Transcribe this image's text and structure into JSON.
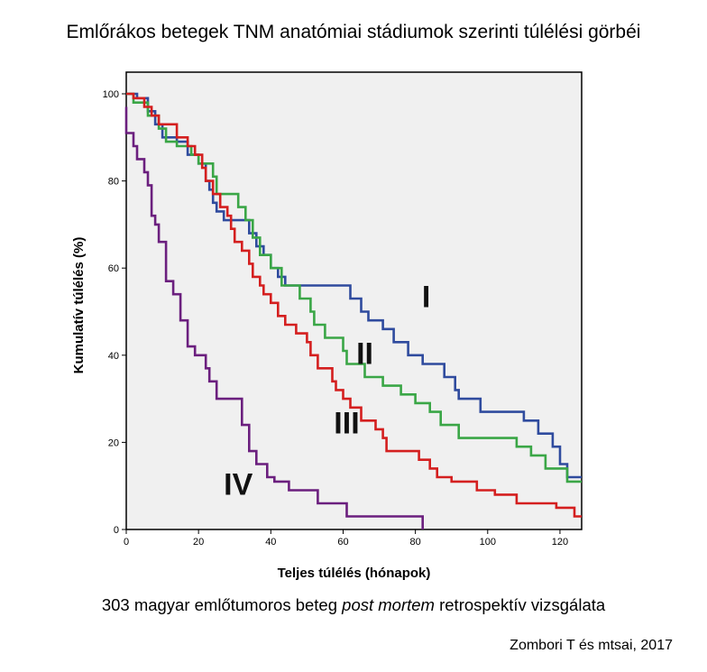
{
  "title": "Emlőrákos betegek TNM anatómiai stádiumok szerinti túlélési görbéi",
  "subtitle": {
    "before": "303 magyar emlőtumoros beteg ",
    "emphasis": "post mortem",
    "after": " retrospektív vizsgálata"
  },
  "credit": "Zombori T és mtsai, 2017",
  "chart_data": {
    "type": "line",
    "style": "step",
    "xlabel": "Teljes túlélés (hónapok)",
    "ylabel": "Kumulatív túlélés (%)",
    "xlim": [
      0,
      126
    ],
    "ylim": [
      0,
      100
    ],
    "xticks": [
      0,
      20,
      40,
      60,
      80,
      100,
      120
    ],
    "yticks": [
      0,
      20,
      40,
      60,
      80,
      100
    ],
    "background": "#f0f0f0",
    "series": [
      {
        "name": "I",
        "color": "#2f4b9e",
        "points": [
          [
            0,
            100
          ],
          [
            3,
            100
          ],
          [
            3,
            99
          ],
          [
            6,
            99
          ],
          [
            6,
            96
          ],
          [
            8,
            96
          ],
          [
            8,
            93
          ],
          [
            10,
            93
          ],
          [
            10,
            90
          ],
          [
            14,
            90
          ],
          [
            14,
            89
          ],
          [
            17,
            89
          ],
          [
            17,
            86
          ],
          [
            20,
            86
          ],
          [
            20,
            84
          ],
          [
            22,
            84
          ],
          [
            22,
            80
          ],
          [
            23,
            80
          ],
          [
            23,
            78
          ],
          [
            24,
            78
          ],
          [
            24,
            75
          ],
          [
            25,
            75
          ],
          [
            25,
            73
          ],
          [
            27,
            73
          ],
          [
            27,
            71
          ],
          [
            34,
            71
          ],
          [
            34,
            68
          ],
          [
            36,
            68
          ],
          [
            36,
            65
          ],
          [
            38,
            65
          ],
          [
            38,
            63
          ],
          [
            40,
            63
          ],
          [
            40,
            60
          ],
          [
            42,
            60
          ],
          [
            42,
            58
          ],
          [
            44,
            58
          ],
          [
            44,
            56
          ],
          [
            62,
            56
          ],
          [
            62,
            53
          ],
          [
            65,
            53
          ],
          [
            65,
            50
          ],
          [
            67,
            50
          ],
          [
            67,
            48
          ],
          [
            71,
            48
          ],
          [
            71,
            46
          ],
          [
            74,
            46
          ],
          [
            74,
            43
          ],
          [
            78,
            43
          ],
          [
            78,
            40
          ],
          [
            82,
            40
          ],
          [
            82,
            38
          ],
          [
            88,
            38
          ],
          [
            88,
            35
          ],
          [
            91,
            35
          ],
          [
            91,
            32
          ],
          [
            92,
            32
          ],
          [
            92,
            30
          ],
          [
            98,
            30
          ],
          [
            98,
            27
          ],
          [
            110,
            27
          ],
          [
            110,
            25
          ],
          [
            114,
            25
          ],
          [
            114,
            22
          ],
          [
            118,
            22
          ],
          [
            118,
            19
          ],
          [
            120,
            19
          ],
          [
            120,
            15
          ],
          [
            122,
            15
          ],
          [
            122,
            12
          ],
          [
            126,
            12
          ]
        ]
      },
      {
        "name": "II",
        "color": "#3aa646",
        "points": [
          [
            0,
            100
          ],
          [
            2,
            100
          ],
          [
            2,
            98
          ],
          [
            6,
            98
          ],
          [
            6,
            95
          ],
          [
            9,
            95
          ],
          [
            9,
            92
          ],
          [
            11,
            92
          ],
          [
            11,
            89
          ],
          [
            14,
            89
          ],
          [
            14,
            88
          ],
          [
            18,
            88
          ],
          [
            18,
            86
          ],
          [
            20,
            86
          ],
          [
            20,
            84
          ],
          [
            24,
            84
          ],
          [
            24,
            81
          ],
          [
            25,
            81
          ],
          [
            25,
            77
          ],
          [
            31,
            77
          ],
          [
            31,
            74
          ],
          [
            33,
            74
          ],
          [
            33,
            71
          ],
          [
            35,
            71
          ],
          [
            35,
            67
          ],
          [
            37,
            67
          ],
          [
            37,
            63
          ],
          [
            40,
            63
          ],
          [
            40,
            60
          ],
          [
            43,
            60
          ],
          [
            43,
            56
          ],
          [
            48,
            56
          ],
          [
            48,
            53
          ],
          [
            51,
            53
          ],
          [
            51,
            50
          ],
          [
            52,
            50
          ],
          [
            52,
            47
          ],
          [
            55,
            47
          ],
          [
            55,
            44
          ],
          [
            60,
            44
          ],
          [
            60,
            41
          ],
          [
            61,
            41
          ],
          [
            61,
            38
          ],
          [
            66,
            38
          ],
          [
            66,
            35
          ],
          [
            71,
            35
          ],
          [
            71,
            33
          ],
          [
            76,
            33
          ],
          [
            76,
            31
          ],
          [
            80,
            31
          ],
          [
            80,
            29
          ],
          [
            84,
            29
          ],
          [
            84,
            27
          ],
          [
            87,
            27
          ],
          [
            87,
            24
          ],
          [
            92,
            24
          ],
          [
            92,
            21
          ],
          [
            108,
            21
          ],
          [
            108,
            19
          ],
          [
            112,
            19
          ],
          [
            112,
            17
          ],
          [
            116,
            17
          ],
          [
            116,
            14
          ],
          [
            122,
            14
          ],
          [
            122,
            11
          ],
          [
            126,
            11
          ]
        ]
      },
      {
        "name": "III",
        "color": "#d41f1f",
        "points": [
          [
            0,
            100
          ],
          [
            2,
            100
          ],
          [
            2,
            99
          ],
          [
            5,
            99
          ],
          [
            5,
            97
          ],
          [
            7,
            97
          ],
          [
            7,
            95
          ],
          [
            9,
            95
          ],
          [
            9,
            93
          ],
          [
            14,
            93
          ],
          [
            14,
            90
          ],
          [
            17,
            90
          ],
          [
            17,
            88
          ],
          [
            19,
            88
          ],
          [
            19,
            86
          ],
          [
            21,
            86
          ],
          [
            21,
            83
          ],
          [
            22,
            83
          ],
          [
            22,
            80
          ],
          [
            24,
            80
          ],
          [
            24,
            77
          ],
          [
            26,
            77
          ],
          [
            26,
            74
          ],
          [
            28,
            74
          ],
          [
            28,
            72
          ],
          [
            29,
            72
          ],
          [
            29,
            69
          ],
          [
            30,
            69
          ],
          [
            30,
            66
          ],
          [
            32,
            66
          ],
          [
            32,
            64
          ],
          [
            34,
            64
          ],
          [
            34,
            61
          ],
          [
            35,
            61
          ],
          [
            35,
            58
          ],
          [
            37,
            58
          ],
          [
            37,
            56
          ],
          [
            38,
            56
          ],
          [
            38,
            54
          ],
          [
            40,
            54
          ],
          [
            40,
            52
          ],
          [
            42,
            52
          ],
          [
            42,
            49
          ],
          [
            44,
            49
          ],
          [
            44,
            47
          ],
          [
            47,
            47
          ],
          [
            47,
            45
          ],
          [
            50,
            45
          ],
          [
            50,
            43
          ],
          [
            51,
            43
          ],
          [
            51,
            40
          ],
          [
            53,
            40
          ],
          [
            53,
            37
          ],
          [
            57,
            37
          ],
          [
            57,
            34
          ],
          [
            58,
            34
          ],
          [
            58,
            32
          ],
          [
            60,
            32
          ],
          [
            60,
            30
          ],
          [
            62,
            30
          ],
          [
            62,
            28
          ],
          [
            65,
            28
          ],
          [
            65,
            25
          ],
          [
            69,
            25
          ],
          [
            69,
            23
          ],
          [
            71,
            23
          ],
          [
            71,
            21
          ],
          [
            72,
            21
          ],
          [
            72,
            18
          ],
          [
            81,
            18
          ],
          [
            81,
            16
          ],
          [
            84,
            16
          ],
          [
            84,
            14
          ],
          [
            86,
            14
          ],
          [
            86,
            12
          ],
          [
            90,
            12
          ],
          [
            90,
            11
          ],
          [
            97,
            11
          ],
          [
            97,
            9
          ],
          [
            102,
            9
          ],
          [
            102,
            8
          ],
          [
            108,
            8
          ],
          [
            108,
            6
          ],
          [
            119,
            6
          ],
          [
            119,
            5
          ],
          [
            124,
            5
          ],
          [
            124,
            3
          ],
          [
            126,
            3
          ]
        ]
      },
      {
        "name": "IV",
        "color": "#6b1f7e",
        "points": [
          [
            0,
            97
          ],
          [
            0,
            91
          ],
          [
            2,
            91
          ],
          [
            2,
            88
          ],
          [
            3,
            88
          ],
          [
            3,
            85
          ],
          [
            5,
            85
          ],
          [
            5,
            82
          ],
          [
            6,
            82
          ],
          [
            6,
            79
          ],
          [
            7,
            79
          ],
          [
            7,
            72
          ],
          [
            8,
            72
          ],
          [
            8,
            70
          ],
          [
            9,
            70
          ],
          [
            9,
            66
          ],
          [
            11,
            66
          ],
          [
            11,
            57
          ],
          [
            13,
            57
          ],
          [
            13,
            54
          ],
          [
            15,
            54
          ],
          [
            15,
            48
          ],
          [
            17,
            48
          ],
          [
            17,
            42
          ],
          [
            19,
            42
          ],
          [
            19,
            40
          ],
          [
            22,
            40
          ],
          [
            22,
            37
          ],
          [
            23,
            37
          ],
          [
            23,
            34
          ],
          [
            25,
            34
          ],
          [
            25,
            30
          ],
          [
            32,
            30
          ],
          [
            32,
            24
          ],
          [
            34,
            24
          ],
          [
            34,
            18
          ],
          [
            36,
            18
          ],
          [
            36,
            15
          ],
          [
            39,
            15
          ],
          [
            39,
            12
          ],
          [
            41,
            12
          ],
          [
            41,
            11
          ],
          [
            45,
            11
          ],
          [
            45,
            9
          ],
          [
            53,
            9
          ],
          [
            53,
            6
          ],
          [
            61,
            6
          ],
          [
            61,
            3
          ],
          [
            82,
            3
          ],
          [
            82,
            0
          ]
        ]
      }
    ],
    "labels": [
      {
        "series": "I",
        "text": "I",
        "x": 83,
        "y": 51
      },
      {
        "series": "II",
        "text": "II",
        "x": 66,
        "y": 38
      },
      {
        "series": "III",
        "text": "III",
        "x": 61,
        "y": 22
      },
      {
        "series": "IV",
        "text": "IV",
        "x": 31,
        "y": 8
      }
    ]
  }
}
